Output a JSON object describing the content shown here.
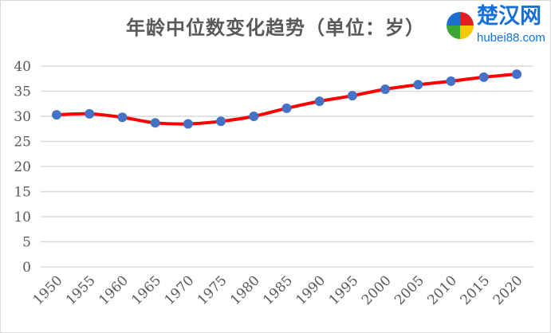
{
  "chart_data": {
    "type": "line",
    "title": "年龄中位数变化趋势（单位：岁）",
    "xlabel": "",
    "ylabel": "",
    "x": [
      "1950",
      "1955",
      "1960",
      "1965",
      "1970",
      "1975",
      "1980",
      "1985",
      "1990",
      "1995",
      "2000",
      "2005",
      "2010",
      "2015",
      "2020"
    ],
    "values": [
      30.3,
      30.5,
      29.8,
      28.7,
      28.5,
      29.0,
      30.0,
      31.6,
      33.0,
      34.1,
      35.4,
      36.3,
      37.0,
      37.8,
      38.4
    ],
    "ylim": [
      0,
      40
    ],
    "yticks": [
      0,
      5,
      10,
      15,
      20,
      25,
      30,
      35,
      40
    ],
    "grid": true,
    "smooth": true,
    "line_color": "#ff0000",
    "marker_color": "#4472c4",
    "grid_color": "#d9d9d9",
    "legend": "none"
  },
  "watermark": {
    "logo_text": "楚汉网",
    "logo_url_text": "hubei88.com"
  }
}
